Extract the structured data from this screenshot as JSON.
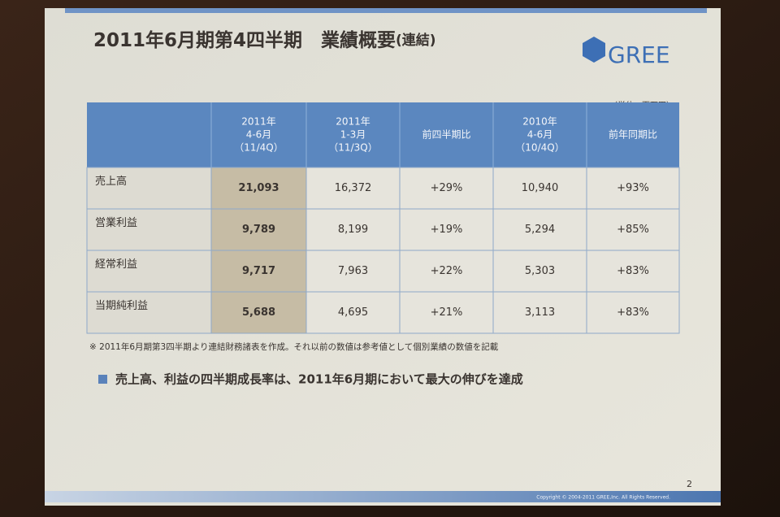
{
  "slide": {
    "title": "2011年6月期第4四半期　業績概要",
    "title_suffix": "(連結)",
    "logo": "GREE",
    "unit": "（単位：百万円）",
    "table": {
      "columns": [
        [
          "2011年",
          "4-6月",
          "（11/4Q）"
        ],
        [
          "2011年",
          "1-3月",
          "（11/3Q）"
        ],
        [
          "前四半期比"
        ],
        [
          "2010年",
          "4-6月",
          "（10/4Q）"
        ],
        [
          "前年同期比"
        ]
      ],
      "rows": [
        {
          "label": "売上高",
          "cells": [
            "21,093",
            "16,372",
            "+29%",
            "10,940",
            "+93%"
          ]
        },
        {
          "label": "営業利益",
          "cells": [
            "9,789",
            "8,199",
            "+19%",
            "5,294",
            "+85%"
          ]
        },
        {
          "label": "経常利益",
          "cells": [
            "9,717",
            "7,963",
            "+22%",
            "5,303",
            "+83%"
          ]
        },
        {
          "label": "当期純利益",
          "cells": [
            "5,688",
            "4,695",
            "+21%",
            "3,113",
            "+83%"
          ]
        }
      ]
    },
    "footnote": "※ 2011年6月期第3四半期より連結財務諸表を作成。それ以前の数値は参考値として個別業績の数値を記載",
    "bullet": "売上高、利益の四半期成長率は、2011年6月期において最大の伸びを達成",
    "page_number": "2",
    "copyright": "Copyright © 2004-2011 GREE,Inc. All Rights Reserved."
  }
}
